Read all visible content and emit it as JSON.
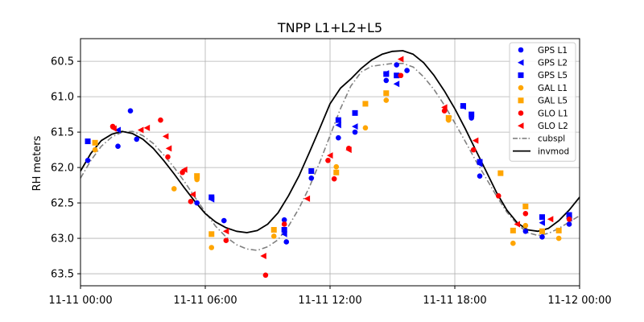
{
  "chart_data": {
    "type": "scatter",
    "title": "TNPP L1+L2+L5",
    "xlabel": "",
    "ylabel": "RH meters",
    "x_unit": "hours since 11-11 00:00",
    "xlim": [
      0,
      24
    ],
    "ylim": [
      63.67,
      60.18
    ],
    "y_inverted": true,
    "grid": true,
    "legend_position": "top-right",
    "x_ticks": [
      {
        "value": 0,
        "label": "11-11 00:00"
      },
      {
        "value": 6,
        "label": "11-11 06:00"
      },
      {
        "value": 12,
        "label": "11-11 12:00"
      },
      {
        "value": 18,
        "label": "11-11 18:00"
      },
      {
        "value": 24,
        "label": "11-12 00:00"
      }
    ],
    "y_ticks": [
      {
        "value": 60.5,
        "label": "60.5"
      },
      {
        "value": 61.0,
        "label": "61.0"
      },
      {
        "value": 61.5,
        "label": "61.5"
      },
      {
        "value": 62.0,
        "label": "62.0"
      },
      {
        "value": 62.5,
        "label": "62.5"
      },
      {
        "value": 63.0,
        "label": "63.0"
      },
      {
        "value": 63.5,
        "label": "63.5"
      }
    ],
    "series": [
      {
        "name": "GPS L1",
        "marker": "circle",
        "color": "#0000ff",
        "points": [
          [
            0.35,
            61.9
          ],
          [
            1.8,
            61.7
          ],
          [
            2.4,
            61.2
          ],
          [
            2.7,
            61.6
          ],
          [
            5.6,
            62.5
          ],
          [
            6.9,
            62.75
          ],
          [
            9.8,
            62.74
          ],
          [
            9.9,
            63.05
          ],
          [
            11.1,
            62.15
          ],
          [
            12.4,
            61.58
          ],
          [
            13.2,
            61.5
          ],
          [
            14.7,
            60.77
          ],
          [
            15.2,
            60.55
          ],
          [
            15.7,
            60.63
          ],
          [
            18.8,
            61.3
          ],
          [
            19.2,
            62.12
          ],
          [
            21.4,
            62.9
          ],
          [
            22.2,
            62.98
          ],
          [
            23.5,
            62.8
          ]
        ]
      },
      {
        "name": "GPS L2",
        "marker": "triangle-left",
        "color": "#0000ff",
        "points": [
          [
            1.8,
            61.47
          ],
          [
            6.3,
            62.45
          ],
          [
            9.8,
            62.94
          ],
          [
            12.4,
            61.4
          ],
          [
            13.2,
            61.42
          ],
          [
            14.7,
            60.67
          ],
          [
            15.2,
            60.82
          ],
          [
            18.4,
            61.14
          ],
          [
            19.2,
            61.95
          ],
          [
            22.2,
            62.78
          ],
          [
            23.5,
            62.72
          ]
        ]
      },
      {
        "name": "GPS L5",
        "marker": "square",
        "color": "#0000ff",
        "points": [
          [
            0.35,
            61.63
          ],
          [
            6.3,
            62.42
          ],
          [
            9.8,
            62.88
          ],
          [
            11.1,
            62.05
          ],
          [
            12.4,
            61.33
          ],
          [
            13.2,
            61.23
          ],
          [
            14.7,
            60.68
          ],
          [
            15.2,
            60.7
          ],
          [
            18.4,
            61.13
          ],
          [
            18.8,
            61.25
          ],
          [
            19.2,
            61.92
          ],
          [
            22.2,
            62.7
          ],
          [
            23.5,
            62.67
          ]
        ]
      },
      {
        "name": "GAL L1",
        "marker": "circle",
        "color": "#ffa500",
        "points": [
          [
            0.7,
            61.75
          ],
          [
            4.5,
            62.3
          ],
          [
            5.6,
            62.17
          ],
          [
            6.3,
            63.13
          ],
          [
            9.3,
            62.97
          ],
          [
            12.3,
            61.99
          ],
          [
            13.7,
            61.44
          ],
          [
            14.7,
            61.05
          ],
          [
            17.7,
            61.33
          ],
          [
            20.8,
            63.07
          ],
          [
            21.4,
            62.82
          ],
          [
            23.0,
            63.0
          ]
        ]
      },
      {
        "name": "GAL L5",
        "marker": "square",
        "color": "#ffa500",
        "points": [
          [
            0.7,
            61.65
          ],
          [
            5.6,
            62.12
          ],
          [
            6.3,
            62.94
          ],
          [
            9.3,
            62.88
          ],
          [
            12.3,
            62.07
          ],
          [
            13.7,
            61.1
          ],
          [
            14.7,
            60.95
          ],
          [
            17.7,
            61.3
          ],
          [
            20.2,
            62.08
          ],
          [
            20.8,
            62.89
          ],
          [
            21.4,
            62.55
          ],
          [
            22.2,
            62.9
          ],
          [
            23.0,
            62.89
          ]
        ]
      },
      {
        "name": "GLO L1",
        "marker": "circle",
        "color": "#ff0000",
        "points": [
          [
            1.55,
            61.42
          ],
          [
            3.85,
            61.33
          ],
          [
            4.2,
            61.85
          ],
          [
            4.9,
            62.07
          ],
          [
            5.3,
            62.48
          ],
          [
            7.0,
            63.03
          ],
          [
            8.9,
            63.52
          ],
          [
            9.8,
            62.8
          ],
          [
            11.9,
            61.9
          ],
          [
            12.2,
            62.16
          ],
          [
            12.9,
            61.73
          ],
          [
            15.4,
            60.7
          ],
          [
            17.5,
            61.2
          ],
          [
            18.9,
            61.75
          ],
          [
            20.1,
            62.4
          ],
          [
            21.4,
            62.65
          ],
          [
            23.5,
            62.73
          ]
        ]
      },
      {
        "name": "GLO L2",
        "marker": "triangle-left",
        "color": "#ff0000",
        "points": [
          [
            1.6,
            61.45
          ],
          [
            2.9,
            61.47
          ],
          [
            3.2,
            61.44
          ],
          [
            4.1,
            61.56
          ],
          [
            4.25,
            61.73
          ],
          [
            5.0,
            62.03
          ],
          [
            5.4,
            62.38
          ],
          [
            7.0,
            62.9
          ],
          [
            8.8,
            63.25
          ],
          [
            10.9,
            62.44
          ],
          [
            12.0,
            61.83
          ],
          [
            12.9,
            61.75
          ],
          [
            15.4,
            60.47
          ],
          [
            17.5,
            61.15
          ],
          [
            19.0,
            61.62
          ],
          [
            21.0,
            62.8
          ],
          [
            22.6,
            62.73
          ]
        ]
      }
    ],
    "curves": [
      {
        "name": "cubspl",
        "style": "dash-dot",
        "color": "#808080",
        "width": 1.6,
        "points": [
          [
            0,
            62.15
          ],
          [
            0.5,
            61.9
          ],
          [
            1,
            61.7
          ],
          [
            1.5,
            61.57
          ],
          [
            2,
            61.5
          ],
          [
            2.5,
            61.49
          ],
          [
            3,
            61.55
          ],
          [
            3.5,
            61.66
          ],
          [
            4,
            61.82
          ],
          [
            4.5,
            62.0
          ],
          [
            5,
            62.2
          ],
          [
            5.5,
            62.42
          ],
          [
            6,
            62.63
          ],
          [
            6.5,
            62.83
          ],
          [
            7,
            62.98
          ],
          [
            7.5,
            63.09
          ],
          [
            8,
            63.15
          ],
          [
            8.5,
            63.17
          ],
          [
            9,
            63.12
          ],
          [
            9.5,
            63.02
          ],
          [
            10,
            62.83
          ],
          [
            10.5,
            62.58
          ],
          [
            11,
            62.28
          ],
          [
            11.5,
            61.93
          ],
          [
            12,
            61.55
          ],
          [
            12.5,
            61.17
          ],
          [
            13,
            60.85
          ],
          [
            13.5,
            60.65
          ],
          [
            14,
            60.57
          ],
          [
            14.5,
            60.55
          ],
          [
            15,
            60.53
          ],
          [
            15.5,
            60.53
          ],
          [
            16,
            60.58
          ],
          [
            16.5,
            60.72
          ],
          [
            17,
            60.9
          ],
          [
            17.5,
            61.12
          ],
          [
            18,
            61.37
          ],
          [
            18.5,
            61.63
          ],
          [
            19,
            61.9
          ],
          [
            19.5,
            62.15
          ],
          [
            20,
            62.4
          ],
          [
            20.5,
            62.63
          ],
          [
            21,
            62.8
          ],
          [
            21.5,
            62.92
          ],
          [
            22,
            62.96
          ],
          [
            22.5,
            62.93
          ],
          [
            23,
            62.86
          ],
          [
            23.5,
            62.77
          ],
          [
            24,
            62.68
          ]
        ]
      },
      {
        "name": "invmod",
        "style": "solid",
        "color": "#000000",
        "width": 1.8,
        "points": [
          [
            0,
            62.05
          ],
          [
            0.5,
            61.8
          ],
          [
            1,
            61.62
          ],
          [
            1.5,
            61.53
          ],
          [
            2,
            61.49
          ],
          [
            2.5,
            61.52
          ],
          [
            3,
            61.6
          ],
          [
            3.5,
            61.73
          ],
          [
            4,
            61.9
          ],
          [
            4.5,
            62.09
          ],
          [
            5,
            62.29
          ],
          [
            5.5,
            62.48
          ],
          [
            6,
            62.65
          ],
          [
            6.5,
            62.77
          ],
          [
            7,
            62.85
          ],
          [
            7.5,
            62.9
          ],
          [
            8,
            62.92
          ],
          [
            8.5,
            62.89
          ],
          [
            9,
            62.8
          ],
          [
            9.5,
            62.64
          ],
          [
            10,
            62.4
          ],
          [
            10.5,
            62.12
          ],
          [
            11,
            61.79
          ],
          [
            11.5,
            61.45
          ],
          [
            12,
            61.1
          ],
          [
            12.5,
            60.88
          ],
          [
            13,
            60.75
          ],
          [
            13.5,
            60.6
          ],
          [
            14,
            60.48
          ],
          [
            14.5,
            60.4
          ],
          [
            15,
            60.36
          ],
          [
            15.5,
            60.35
          ],
          [
            16,
            60.4
          ],
          [
            16.5,
            60.52
          ],
          [
            17,
            60.7
          ],
          [
            17.5,
            60.92
          ],
          [
            18,
            61.17
          ],
          [
            18.5,
            61.45
          ],
          [
            19,
            61.75
          ],
          [
            19.5,
            62.05
          ],
          [
            20,
            62.35
          ],
          [
            20.5,
            62.6
          ],
          [
            21,
            62.78
          ],
          [
            21.5,
            62.88
          ],
          [
            22,
            62.9
          ],
          [
            22.5,
            62.86
          ],
          [
            23,
            62.75
          ],
          [
            23.5,
            62.6
          ],
          [
            24,
            62.42
          ]
        ]
      }
    ]
  }
}
